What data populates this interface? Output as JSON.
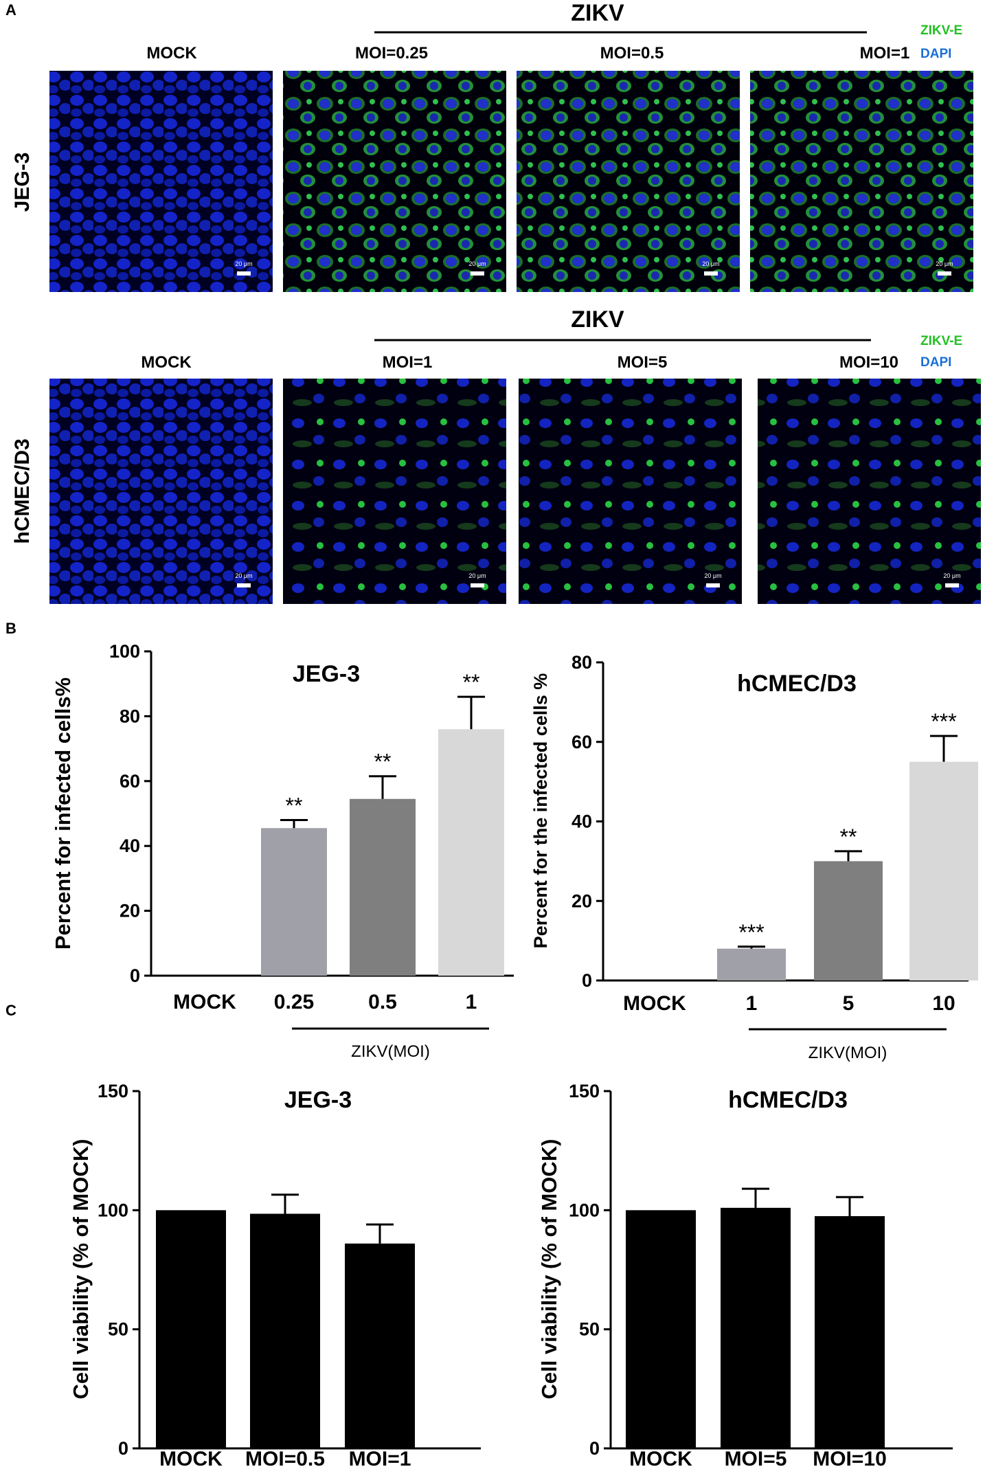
{
  "panels": {
    "A": "A",
    "B": "B",
    "C": "C"
  },
  "micrographs": {
    "virus_label": "ZIKV",
    "scale_bar": "20 μm",
    "rows": [
      {
        "row_label": "JEG-3",
        "columns": [
          "MOCK",
          "MOI=0.25",
          "MOI=0.5",
          "MOI=1"
        ],
        "legend": [
          {
            "text": "ZIKV-E",
            "color": "#22c022"
          },
          {
            "text": "DAPI",
            "color": "#1a6fd8"
          }
        ]
      },
      {
        "row_label": "hCMEC/D3",
        "columns": [
          "MOCK",
          "MOI=1",
          "MOI=5",
          "MOI=10"
        ],
        "legend": [
          {
            "text": "ZIKV-E",
            "color": "#22c022"
          },
          {
            "text": "DAPI",
            "color": "#1a6fd8"
          }
        ]
      }
    ]
  },
  "chart_data": [
    {
      "id": "b1",
      "type": "bar",
      "title": "JEG-3",
      "ylabel": "Percent for infected cells%",
      "xlabel": "ZIKV(MOI)",
      "categories": [
        "MOCK",
        "0.25",
        "0.5",
        "1"
      ],
      "values": [
        0,
        45.5,
        54.5,
        76
      ],
      "errors": [
        0,
        2.5,
        7,
        10
      ],
      "significance": [
        "",
        "**",
        "**",
        "**"
      ],
      "colors": [
        "#a0a0a8",
        "#a0a0a8",
        "#7f7f7f",
        "#d8d8d8"
      ],
      "ylim": [
        0,
        100
      ],
      "yticks": [
        0,
        20,
        40,
        60,
        80,
        100
      ]
    },
    {
      "id": "b2",
      "type": "bar",
      "title": "hCMEC/D3",
      "ylabel": "Percent for the infected cells %",
      "xlabel": "ZIKV(MOI)",
      "categories": [
        "MOCK",
        "1",
        "5",
        "10"
      ],
      "values": [
        0,
        8,
        30,
        55
      ],
      "errors": [
        0,
        0.5,
        2.5,
        6.5
      ],
      "significance": [
        "",
        "***",
        "**",
        "***"
      ],
      "colors": [
        "#a0a0a8",
        "#a0a0a8",
        "#7f7f7f",
        "#d8d8d8"
      ],
      "ylim": [
        0,
        80
      ],
      "yticks": [
        0,
        20,
        40,
        60,
        80
      ]
    },
    {
      "id": "c1",
      "type": "bar",
      "title": "JEG-3",
      "ylabel": "Cell viability (% of MOCK)",
      "xlabel": "",
      "categories": [
        "MOCK",
        "MOI=0.5",
        "MOI=1"
      ],
      "values": [
        100,
        98.5,
        86
      ],
      "errors": [
        0,
        8,
        8
      ],
      "significance": [
        "",
        "",
        ""
      ],
      "colors": [
        "#000000",
        "#000000",
        "#000000"
      ],
      "ylim": [
        0,
        150
      ],
      "yticks": [
        0,
        50,
        100,
        150
      ]
    },
    {
      "id": "c2",
      "type": "bar",
      "title": "hCMEC/D3",
      "ylabel": "Cell viability (% of MOCK)",
      "xlabel": "",
      "categories": [
        "MOCK",
        "MOI=5",
        "MOI=10"
      ],
      "values": [
        100,
        101,
        97.5
      ],
      "errors": [
        0,
        8,
        8
      ],
      "significance": [
        "",
        "",
        ""
      ],
      "colors": [
        "#000000",
        "#000000",
        "#000000"
      ],
      "ylim": [
        0,
        150
      ],
      "yticks": [
        0,
        50,
        100,
        150
      ]
    }
  ]
}
